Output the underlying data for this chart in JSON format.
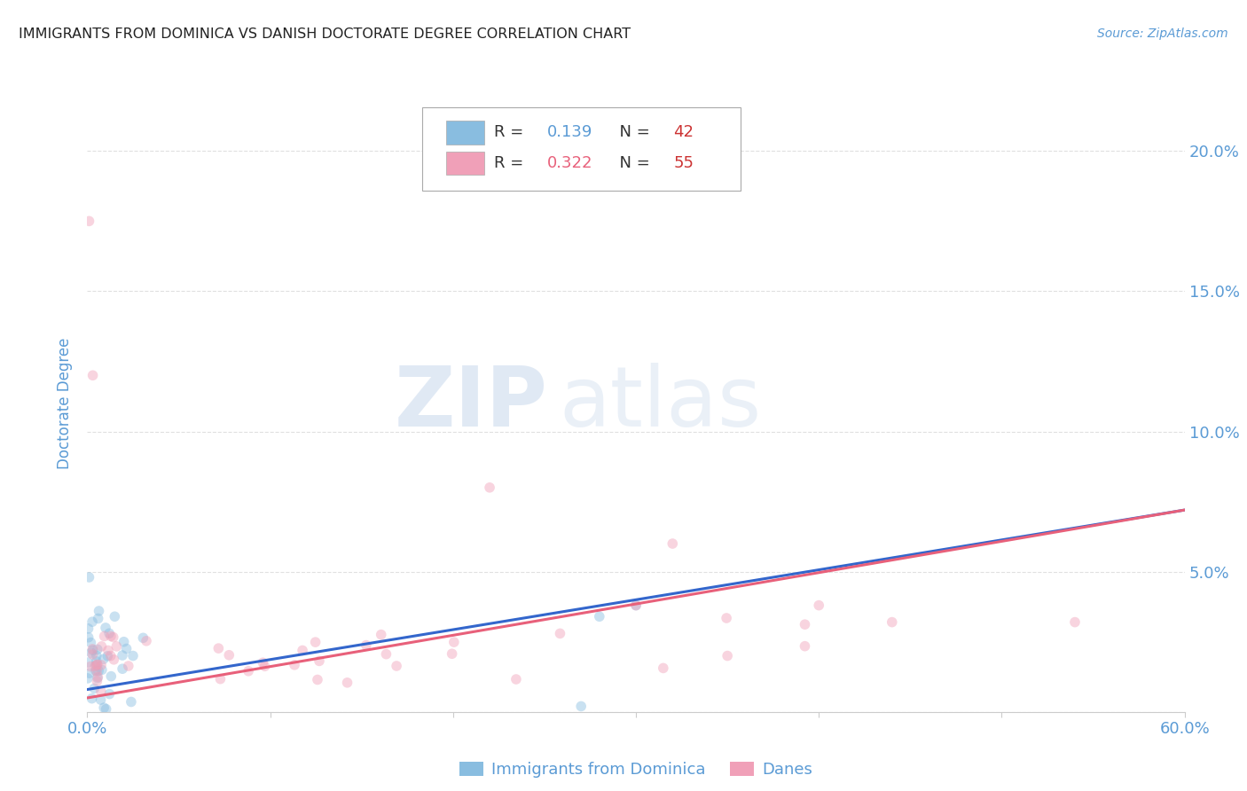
{
  "title": "IMMIGRANTS FROM DOMINICA VS DANISH DOCTORATE DEGREE CORRELATION CHART",
  "source": "Source: ZipAtlas.com",
  "ylabel": "Doctorate Degree",
  "watermark_zip": "ZIP",
  "watermark_atlas": "atlas",
  "xlim": [
    0.0,
    0.6
  ],
  "ylim": [
    0.0,
    0.22
  ],
  "xtick_positions": [
    0.0,
    0.1,
    0.2,
    0.3,
    0.4,
    0.5,
    0.6
  ],
  "xtick_labels": [
    "0.0%",
    "",
    "",
    "",
    "",
    "",
    "60.0%"
  ],
  "ytick_positions": [
    0.0,
    0.05,
    0.1,
    0.15,
    0.2
  ],
  "ytick_labels_right": [
    "",
    "5.0%",
    "10.0%",
    "15.0%",
    "20.0%"
  ],
  "r_blue": "0.139",
  "n_blue": "42",
  "r_pink": "0.322",
  "n_pink": "55",
  "blue_line_x0": 0.0,
  "blue_line_y0": 0.008,
  "blue_line_x1": 0.6,
  "blue_line_y1": 0.072,
  "pink_line_x0": 0.0,
  "pink_line_y0": 0.005,
  "pink_line_x1": 0.6,
  "pink_line_y1": 0.072,
  "scatter_alpha": 0.45,
  "scatter_size": 70,
  "blue_color": "#89bde0",
  "blue_line_color": "#3366cc",
  "pink_color": "#f0a0b8",
  "pink_line_color": "#e8607a",
  "bg_color": "#ffffff",
  "grid_color": "#cccccc",
  "title_color": "#222222",
  "tick_label_color": "#5b9bd5",
  "legend_text_color": "#333333",
  "legend_r_color": "#5b9bd5",
  "legend_n_color": "#cc3333",
  "bottom_legend_color": "#5b9bd5"
}
